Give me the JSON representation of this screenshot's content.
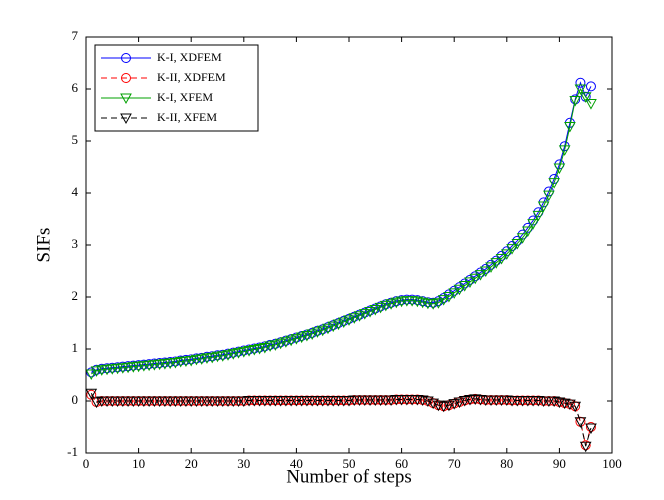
{
  "chart_data": {
    "type": "line",
    "x_label": "Number of steps",
    "y_label": "SIFs",
    "x": [
      1,
      2,
      3,
      4,
      5,
      6,
      7,
      8,
      9,
      10,
      11,
      12,
      13,
      14,
      15,
      16,
      17,
      18,
      19,
      20,
      21,
      22,
      23,
      24,
      25,
      26,
      27,
      28,
      29,
      30,
      31,
      32,
      33,
      34,
      35,
      36,
      37,
      38,
      39,
      40,
      41,
      42,
      43,
      44,
      45,
      46,
      47,
      48,
      49,
      50,
      51,
      52,
      53,
      54,
      55,
      56,
      57,
      58,
      59,
      60,
      61,
      62,
      63,
      64,
      65,
      66,
      67,
      68,
      69,
      70,
      71,
      72,
      73,
      74,
      75,
      76,
      77,
      78,
      79,
      80,
      81,
      82,
      83,
      84,
      85,
      86,
      87,
      88,
      89,
      90,
      91,
      92,
      93,
      94,
      95,
      96
    ],
    "series": [
      {
        "name": "K-I, XDFEM",
        "color": "#0000ff",
        "linestyle": "solid",
        "marker": "circle",
        "values": [
          0.55,
          0.6,
          0.62,
          0.63,
          0.64,
          0.65,
          0.66,
          0.67,
          0.68,
          0.69,
          0.7,
          0.71,
          0.72,
          0.73,
          0.74,
          0.75,
          0.76,
          0.78,
          0.79,
          0.8,
          0.82,
          0.83,
          0.85,
          0.86,
          0.88,
          0.89,
          0.91,
          0.93,
          0.95,
          0.97,
          0.99,
          1.01,
          1.03,
          1.05,
          1.08,
          1.1,
          1.13,
          1.16,
          1.19,
          1.22,
          1.25,
          1.28,
          1.31,
          1.35,
          1.38,
          1.42,
          1.46,
          1.5,
          1.54,
          1.58,
          1.62,
          1.66,
          1.7,
          1.74,
          1.78,
          1.82,
          1.86,
          1.89,
          1.92,
          1.94,
          1.95,
          1.95,
          1.94,
          1.92,
          1.9,
          1.89,
          1.92,
          1.98,
          2.05,
          2.12,
          2.19,
          2.26,
          2.33,
          2.4,
          2.47,
          2.54,
          2.62,
          2.7,
          2.79,
          2.88,
          2.98,
          3.08,
          3.2,
          3.33,
          3.47,
          3.63,
          3.82,
          4.03,
          4.27,
          4.55,
          4.9,
          5.35,
          5.8,
          6.12,
          5.85,
          6.05
        ]
      },
      {
        "name": "K-II, XDFEM",
        "color": "#ff0000",
        "linestyle": "dashed",
        "marker": "circle",
        "values": [
          0.12,
          -0.02,
          0,
          0,
          0,
          0,
          0,
          0,
          0,
          0,
          0,
          0,
          0,
          0,
          0,
          0,
          0,
          0,
          0,
          0,
          0,
          0,
          0,
          0,
          0,
          0,
          0,
          0,
          0,
          0,
          0.01,
          0.01,
          0.01,
          0.01,
          0.01,
          0.01,
          0.01,
          0.01,
          0.01,
          0.01,
          0.01,
          0.01,
          0.01,
          0.01,
          0.01,
          0.01,
          0.01,
          0.01,
          0.01,
          0.01,
          0.02,
          0.02,
          0.02,
          0.02,
          0.02,
          0.02,
          0.02,
          0.02,
          0.03,
          0.03,
          0.03,
          0.03,
          0.03,
          0.02,
          0,
          -0.04,
          -0.08,
          -0.1,
          -0.08,
          -0.05,
          -0.02,
          0.01,
          0.03,
          0.04,
          0.03,
          0.02,
          0.02,
          0.02,
          0.02,
          0.02,
          0.01,
          0.01,
          0.01,
          0.01,
          0.01,
          0.01,
          0,
          0,
          0,
          -0.02,
          -0.04,
          -0.06,
          -0.1,
          -0.4,
          -0.85,
          -0.5
        ]
      },
      {
        "name": "K-I, XFEM",
        "color": "#00a000",
        "linestyle": "solid",
        "marker": "triangle-down",
        "values": [
          0.52,
          0.58,
          0.6,
          0.61,
          0.62,
          0.63,
          0.64,
          0.65,
          0.66,
          0.67,
          0.68,
          0.69,
          0.7,
          0.71,
          0.72,
          0.73,
          0.74,
          0.76,
          0.77,
          0.78,
          0.8,
          0.81,
          0.83,
          0.84,
          0.86,
          0.87,
          0.89,
          0.91,
          0.93,
          0.95,
          0.97,
          0.99,
          1.01,
          1.03,
          1.06,
          1.08,
          1.11,
          1.14,
          1.17,
          1.2,
          1.23,
          1.26,
          1.29,
          1.33,
          1.36,
          1.4,
          1.44,
          1.48,
          1.52,
          1.56,
          1.6,
          1.64,
          1.68,
          1.72,
          1.76,
          1.8,
          1.84,
          1.87,
          1.9,
          1.92,
          1.93,
          1.93,
          1.92,
          1.9,
          1.88,
          1.87,
          1.89,
          1.95,
          2.01,
          2.08,
          2.15,
          2.22,
          2.29,
          2.36,
          2.43,
          2.5,
          2.58,
          2.66,
          2.74,
          2.83,
          2.93,
          3.03,
          3.14,
          3.27,
          3.41,
          3.57,
          3.75,
          3.96,
          4.2,
          4.48,
          4.83,
          5.28,
          5.78,
          6.0,
          5.85,
          5.72
        ]
      },
      {
        "name": "K-II, XFEM",
        "color": "#000000",
        "linestyle": "dashed",
        "marker": "triangle-down",
        "values": [
          0.15,
          -0.02,
          0,
          0,
          0,
          0,
          0,
          0,
          0,
          0,
          0,
          0,
          0,
          0,
          0,
          0,
          0,
          0,
          0,
          0,
          0,
          0,
          0,
          0,
          0,
          0,
          0,
          0,
          0,
          0,
          0.01,
          0.01,
          0.01,
          0.01,
          0.01,
          0.01,
          0.01,
          0.01,
          0.01,
          0.01,
          0.01,
          0.01,
          0.01,
          0.01,
          0.01,
          0.01,
          0.01,
          0.01,
          0.01,
          0.01,
          0.02,
          0.02,
          0.02,
          0.02,
          0.02,
          0.02,
          0.02,
          0.02,
          0.03,
          0.03,
          0.03,
          0.03,
          0.03,
          0.02,
          0,
          -0.04,
          -0.08,
          -0.1,
          -0.08,
          -0.05,
          -0.02,
          0.01,
          0.03,
          0.04,
          0.03,
          0.02,
          0.02,
          0.02,
          0.02,
          0.02,
          0.01,
          0.01,
          0.01,
          0.01,
          0.01,
          0.01,
          0,
          0,
          0,
          -0.02,
          -0.04,
          -0.06,
          -0.1,
          -0.4,
          -0.87,
          -0.52
        ]
      }
    ],
    "xlim": [
      0,
      100
    ],
    "xticks": [
      0,
      10,
      20,
      30,
      40,
      50,
      60,
      70,
      80,
      90,
      100
    ],
    "ylim": [
      -1,
      7
    ],
    "yticks": [
      -1,
      0,
      1,
      2,
      3,
      4,
      5,
      6,
      7
    ],
    "legend": "top-left"
  }
}
